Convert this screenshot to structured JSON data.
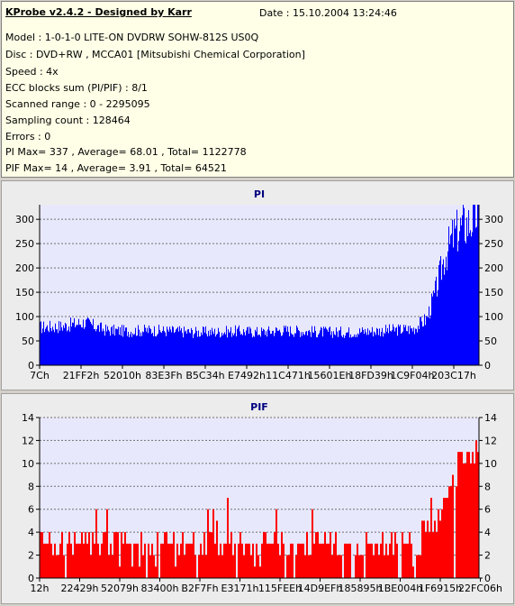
{
  "header": {
    "title": "KProbe v2.4.2 - Designed by Karr",
    "date": "Date : 15.10.2004 13:24:46",
    "lines": [
      "Model : 1-0-1-0 LITE-ON DVDRW SOHW-812S  US0Q",
      "Disc : DVD+RW , MCCA01 [Mitsubishi Chemical Corporation]",
      "Speed : 4x",
      "ECC blocks sum (PI/PIF) : 8/1",
      "Scanned range : 0 - 2295095",
      "Sampling count : 128464",
      "Errors : 0",
      "PI Max= 337 , Average= 68.01 , Total= 1122778",
      "PIF Max= 14 , Average= 3.91 , Total= 64521"
    ]
  },
  "colors": {
    "pi_fill": "#0000ff",
    "pif_fill": "#ff0000",
    "plot_bg": "#e8e8fc",
    "panel_bg": "#ececec",
    "title_color": "#000080",
    "grid": "#707070"
  },
  "chart_data": [
    {
      "type": "area",
      "title": "PI",
      "ylim": [
        0,
        330
      ],
      "yticks": [
        0,
        50,
        100,
        150,
        200,
        250,
        300
      ],
      "xticks": [
        "7Ch",
        "21FF2h",
        "52010h",
        "83E3Fh",
        "B5C34h",
        "E7492h",
        "11C471h",
        "15601Eh",
        "18FD39h",
        "1C9F04h",
        "203C17h"
      ],
      "grid": true,
      "series": [
        {
          "x": [
            0,
            0.05,
            0.1,
            0.15,
            0.2,
            0.25,
            0.3,
            0.35,
            0.4,
            0.45,
            0.5,
            0.55,
            0.6,
            0.65,
            0.7,
            0.75,
            0.8,
            0.85,
            0.88,
            0.9,
            0.92,
            0.94,
            0.96,
            0.98,
            1.0
          ],
          "values": [
            78,
            80,
            88,
            72,
            70,
            72,
            70,
            68,
            68,
            70,
            68,
            72,
            70,
            68,
            68,
            70,
            72,
            75,
            95,
            150,
            220,
            265,
            285,
            295,
            318
          ]
        }
      ]
    },
    {
      "type": "bar",
      "title": "PIF",
      "ylim": [
        0,
        14
      ],
      "yticks": [
        0,
        2,
        4,
        6,
        8,
        10,
        12,
        14
      ],
      "xticks": [
        "12h",
        "22429h",
        "52079h",
        "83400h",
        "B2F7Fh",
        "E3171h",
        "115FEEh",
        "14D9EFh",
        "185895h",
        "1BE004h",
        "1F6915h",
        "22FC06h"
      ],
      "grid": true,
      "series": [
        {
          "x": [
            0,
            0.1,
            0.2,
            0.3,
            0.4,
            0.5,
            0.6,
            0.7,
            0.8,
            0.85,
            0.88,
            0.9,
            0.92,
            0.94,
            0.96,
            0.98,
            1.0
          ],
          "values": [
            3,
            3,
            3,
            3,
            3,
            3,
            3,
            3,
            3,
            3,
            4,
            5,
            7,
            9,
            10,
            11,
            12
          ]
        }
      ]
    }
  ]
}
